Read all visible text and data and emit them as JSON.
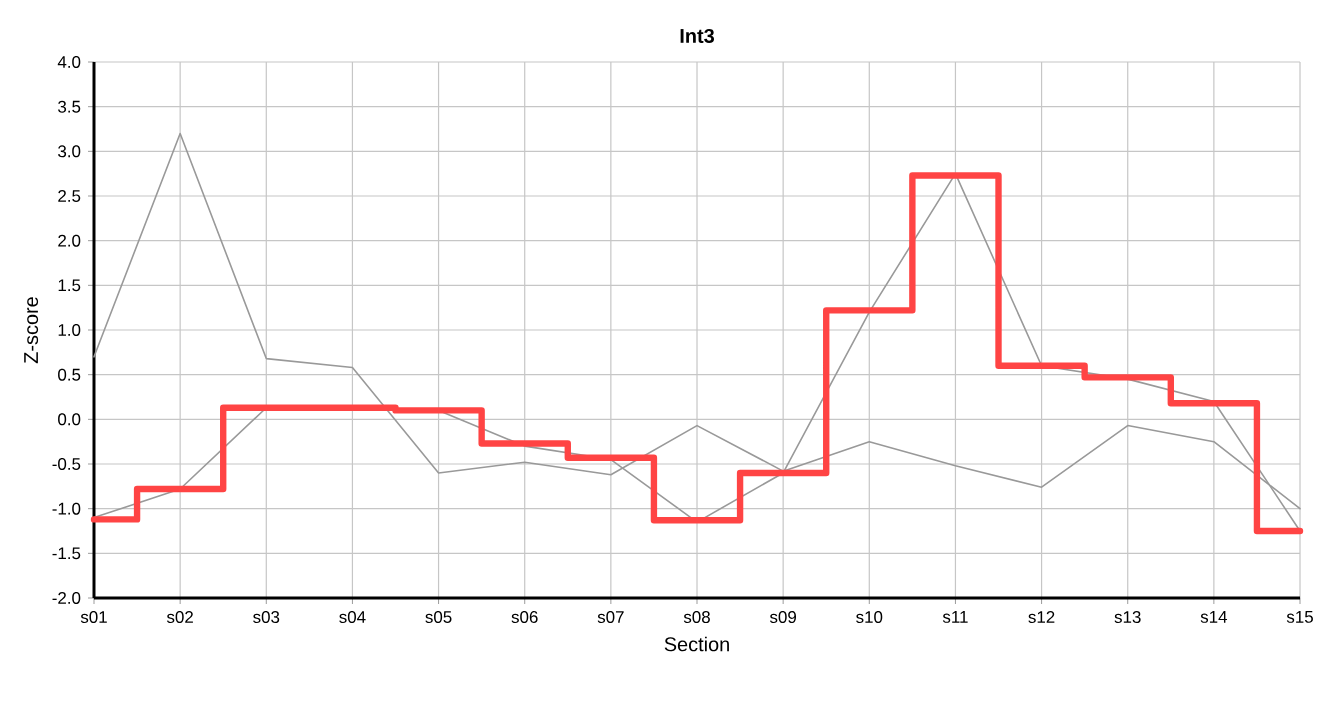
{
  "chart_data": {
    "type": "line",
    "title": "Int3",
    "xlabel": "Section",
    "ylabel": "Z-score",
    "categories": [
      "s01",
      "s02",
      "s03",
      "s04",
      "s05",
      "s06",
      "s07",
      "s08",
      "s09",
      "s10",
      "s11",
      "s12",
      "s13",
      "s14",
      "s15"
    ],
    "series": [
      {
        "color": "#999999",
        "values": [
          0.7,
          3.2,
          0.68,
          0.58,
          -0.6,
          -0.48,
          -0.62,
          -0.07,
          -0.58,
          -0.25,
          -0.52,
          -0.76,
          -0.07,
          -0.25,
          -1.0
        ]
      },
      {
        "color": "#999999",
        "values": [
          -1.1,
          -0.78,
          0.13,
          0.13,
          0.1,
          -0.3,
          -0.45,
          -1.15,
          -0.6,
          1.2,
          2.75,
          0.6,
          0.45,
          0.2,
          -1.25
        ]
      },
      {
        "type": "step",
        "color": "#ff4444",
        "values": [
          -1.12,
          -0.78,
          0.13,
          0.13,
          0.1,
          -0.27,
          -0.43,
          -1.13,
          -0.6,
          1.22,
          2.73,
          0.6,
          0.47,
          0.18,
          -1.25
        ]
      }
    ],
    "ylim": [
      -2,
      4
    ],
    "yticks": [
      {
        "value": -2,
        "label": "-2.0"
      },
      -1.5,
      {
        "value": -1,
        "label": "-1.0"
      },
      -0.5,
      {
        "value": 0,
        "label": "0.0"
      },
      0.5,
      {
        "value": 1,
        "label": "1.0"
      },
      1.5,
      {
        "value": 2,
        "label": "2.0"
      },
      2.5,
      {
        "value": 3,
        "label": "3.0"
      },
      3.5,
      {
        "value": 4,
        "label": "4.0"
      }
    ],
    "grid": true,
    "marker": "none",
    "line_style": "solid"
  }
}
